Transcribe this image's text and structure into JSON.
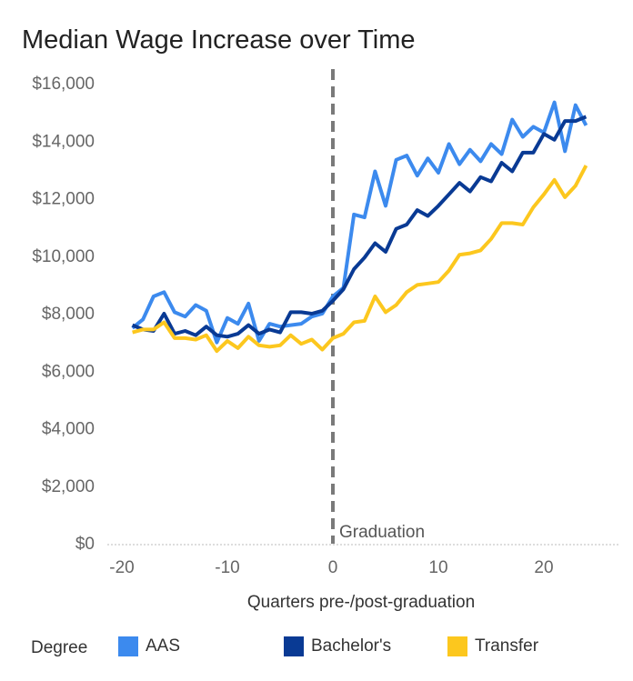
{
  "chart_data": {
    "type": "line",
    "title": "Median Wage Increase over Time",
    "xlabel": "Quarters pre-/post-graduation",
    "ylabel": "",
    "xlim": [
      -22,
      27
    ],
    "ylim": [
      0,
      16000
    ],
    "x_ticks": [
      -20,
      -10,
      0,
      10,
      20
    ],
    "x_tick_labels": [
      "-20",
      "-10",
      "0",
      "10",
      "20"
    ],
    "y_ticks": [
      0,
      2000,
      4000,
      6000,
      8000,
      10000,
      12000,
      14000,
      16000
    ],
    "y_tick_labels": [
      "$0",
      "$2,000",
      "$4,000",
      "$6,000",
      "$8,000",
      "$10,000",
      "$12,000",
      "$14,000",
      "$16,000"
    ],
    "grid": false,
    "annotation": {
      "x": 0,
      "label": "Graduation"
    },
    "legend": {
      "title": "Degree",
      "position": "bottom"
    },
    "x": [
      -19,
      -18,
      -17,
      -16,
      -15,
      -14,
      -13,
      -12,
      -11,
      -10,
      -9,
      -8,
      -7,
      -6,
      -5,
      -4,
      -3,
      -2,
      -1,
      0,
      1,
      2,
      3,
      4,
      5,
      6,
      7,
      8,
      9,
      10,
      11,
      12,
      13,
      14,
      15,
      16,
      17,
      18,
      19,
      20,
      21,
      22,
      23,
      24
    ],
    "series": [
      {
        "name": "AAS",
        "color": "#3c8aee",
        "values": [
          7500,
          7800,
          8600,
          8750,
          8050,
          7900,
          8300,
          8100,
          7000,
          7850,
          7650,
          8350,
          7050,
          7650,
          7550,
          7600,
          7650,
          7900,
          8000,
          8600,
          8900,
          11450,
          11350,
          12950,
          11750,
          13350,
          13500,
          12800,
          13400,
          12900,
          13900,
          13200,
          13700,
          13300,
          13900,
          13550,
          14750,
          14150,
          14500,
          14300,
          15350,
          13650,
          15250,
          14550
        ]
      },
      {
        "name": "Bachelor's",
        "color": "#093a94",
        "values": [
          7600,
          7450,
          7400,
          8000,
          7300,
          7400,
          7250,
          7550,
          7250,
          7200,
          7300,
          7600,
          7300,
          7450,
          7350,
          8050,
          8050,
          8000,
          8100,
          8450,
          8850,
          9550,
          9950,
          10450,
          10150,
          10950,
          11100,
          11600,
          11400,
          11750,
          12150,
          12550,
          12250,
          12750,
          12600,
          13250,
          12950,
          13600,
          13600,
          14250,
          14050,
          14700,
          14700,
          14850
        ]
      },
      {
        "name": "Transfer",
        "color": "#fcc71e",
        "values": [
          7350,
          7450,
          7450,
          7700,
          7150,
          7150,
          7100,
          7250,
          6700,
          7050,
          6800,
          7200,
          6900,
          6850,
          6900,
          7250,
          6950,
          7100,
          6750,
          7150,
          7300,
          7700,
          7750,
          8600,
          8050,
          8300,
          8750,
          9000,
          9050,
          9100,
          9500,
          10050,
          10100,
          10200,
          10600,
          11150,
          11150,
          11100,
          11700,
          12150,
          12650,
          12050,
          12450,
          13150
        ]
      }
    ]
  }
}
